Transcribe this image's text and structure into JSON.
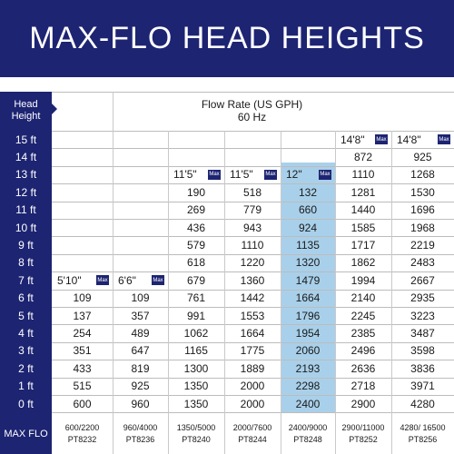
{
  "title": "MAX-FLO HEAD HEIGHTS",
  "colors": {
    "navy": "#1d2472",
    "highlight": "#a9d0ea"
  },
  "chart_data": {
    "type": "table",
    "row_header": "Head Height",
    "column_group_header": [
      "Flow Rate (US GPH)",
      "60 Hz"
    ],
    "max_badge": "Max",
    "max_flo_label": "MAX FLO",
    "rows": [
      "15 ft",
      "14 ft",
      "13 ft",
      "12 ft",
      "11 ft",
      "10 ft",
      "9 ft",
      "8 ft",
      "7 ft",
      "6 ft",
      "5 ft",
      "4 ft",
      "3 ft",
      "2 ft",
      "1 ft",
      "0 ft"
    ],
    "columns": [
      {
        "max_head": "5'10\"",
        "models": [
          "600/2200",
          "PT8232"
        ],
        "values": [
          null,
          null,
          null,
          null,
          null,
          null,
          null,
          null,
          null,
          109,
          137,
          254,
          351,
          433,
          515,
          600
        ]
      },
      {
        "max_head": "6'6\"",
        "models": [
          "960/4000",
          "PT8236"
        ],
        "values": [
          null,
          null,
          null,
          null,
          null,
          null,
          null,
          null,
          null,
          109,
          357,
          489,
          647,
          819,
          925,
          960
        ]
      },
      {
        "max_head": "11'5\"",
        "models": [
          "1350/5000",
          "PT8240"
        ],
        "values": [
          null,
          null,
          null,
          190,
          269,
          436,
          579,
          618,
          679,
          761,
          991,
          1062,
          1165,
          1300,
          1350,
          1350
        ]
      },
      {
        "max_head": "11'5\"",
        "models": [
          "2000/7600",
          "PT8244"
        ],
        "values": [
          null,
          null,
          null,
          518,
          779,
          943,
          1110,
          1220,
          1360,
          1442,
          1553,
          1664,
          1775,
          1889,
          2000,
          2000
        ]
      },
      {
        "max_head": "12\"",
        "models": [
          "2400/9000",
          "PT8248"
        ],
        "values": [
          null,
          null,
          null,
          132,
          660,
          924,
          1135,
          1320,
          1479,
          1664,
          1796,
          1954,
          2060,
          2193,
          2298,
          2400
        ]
      },
      {
        "max_head": "14'8\"",
        "models": [
          "2900/11000",
          "PT8252"
        ],
        "values": [
          null,
          872,
          1110,
          1281,
          1440,
          1585,
          1717,
          1862,
          1994,
          2140,
          2245,
          2385,
          2496,
          2636,
          2718,
          2900
        ]
      },
      {
        "max_head": "14'8\"",
        "models": [
          "4280/ 16500",
          "PT8256"
        ],
        "values": [
          null,
          925,
          1268,
          1530,
          1696,
          1968,
          2219,
          2483,
          2667,
          2935,
          3223,
          3487,
          3598,
          3836,
          3971,
          4280
        ]
      }
    ]
  }
}
